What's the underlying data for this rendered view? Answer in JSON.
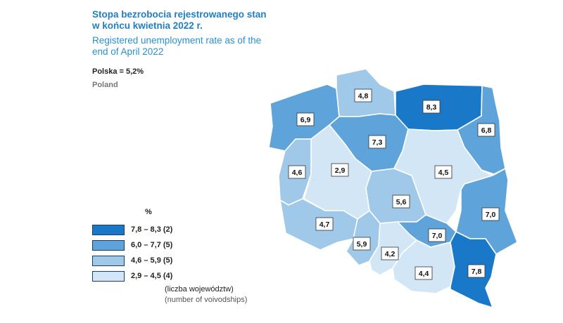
{
  "title": {
    "pl": "Stopa bezrobocia rejestrowanego stan w końcu kwietnia 2022 r.",
    "en": "Registered unemployment rate as of the end of April 2022"
  },
  "national": {
    "pl": "Polska = 5,2%",
    "en": "Poland"
  },
  "legend": {
    "unit": "%",
    "classes": [
      {
        "label": "7,8 – 8,3  (2)",
        "color": "#1a78c8"
      },
      {
        "label": "6,0 – 7,7  (5)",
        "color": "#5ea3d9"
      },
      {
        "label": "4,6 – 5,9  (5)",
        "color": "#9fc8e9"
      },
      {
        "label": "2,9 – 4,5  (4)",
        "color": "#d3e6f5"
      }
    ],
    "note_pl": "(liczba województw)",
    "note_en": "(number of voivodships)"
  },
  "regions": [
    {
      "value": "6,9",
      "color": "#5ea3d9"
    },
    {
      "value": "4,8",
      "color": "#9fc8e9"
    },
    {
      "value": "8,3",
      "color": "#1a78c8"
    },
    {
      "value": "6,8",
      "color": "#5ea3d9"
    },
    {
      "value": "7,3",
      "color": "#5ea3d9"
    },
    {
      "value": "4,6",
      "color": "#9fc8e9"
    },
    {
      "value": "2,9",
      "color": "#d3e6f5"
    },
    {
      "value": "4,5",
      "color": "#d3e6f5"
    },
    {
      "value": "5,6",
      "color": "#9fc8e9"
    },
    {
      "value": "7,0",
      "color": "#5ea3d9"
    },
    {
      "value": "4,7",
      "color": "#9fc8e9"
    },
    {
      "value": "5,9",
      "color": "#9fc8e9"
    },
    {
      "value": "7,0",
      "color": "#5ea3d9"
    },
    {
      "value": "4,2",
      "color": "#d3e6f5"
    },
    {
      "value": "4,4",
      "color": "#d3e6f5"
    },
    {
      "value": "7,8",
      "color": "#1a78c8"
    }
  ]
}
